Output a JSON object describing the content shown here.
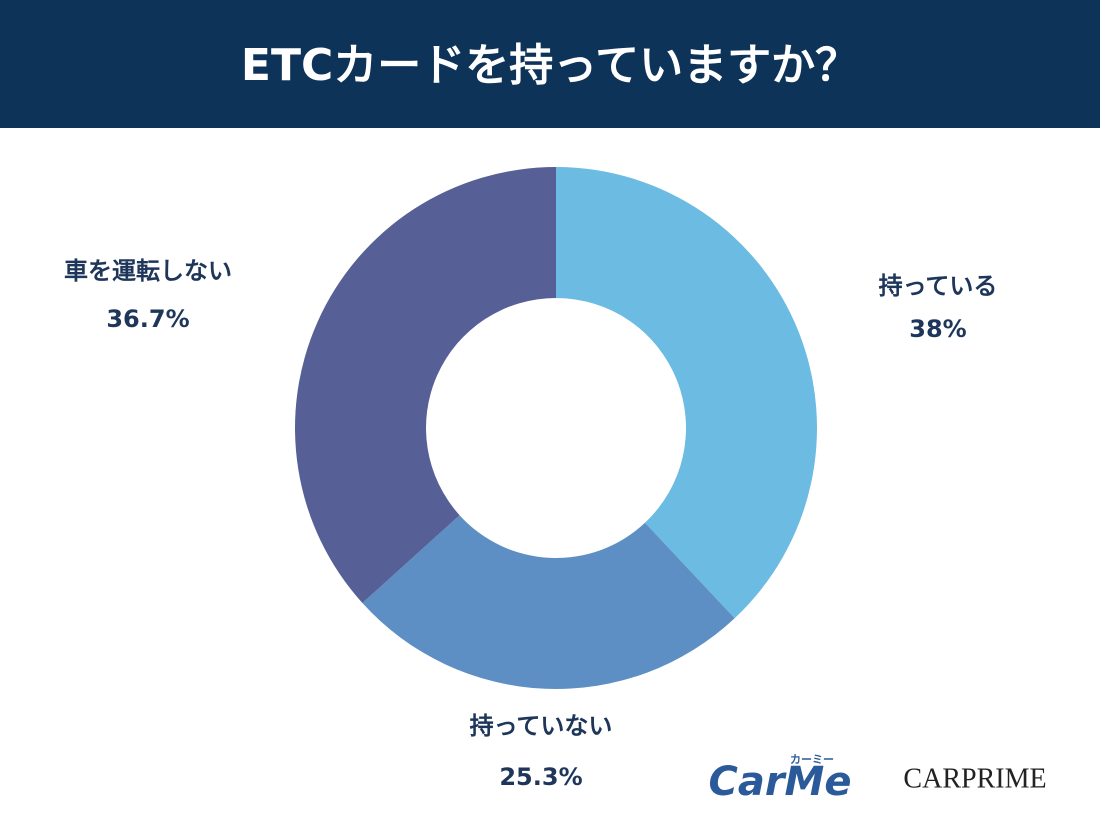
{
  "chart_data": {
    "type": "donut",
    "title": "ETCカードを持っていますか？",
    "categories": [
      "持っている",
      "持っていない",
      "車を運転しない"
    ],
    "values": [
      38,
      25.3,
      36.7
    ],
    "value_labels": [
      "38%",
      "25.3%",
      "36.7%"
    ],
    "colors": [
      "#6bbbe3",
      "#5e8fc4",
      "#566096"
    ]
  },
  "branding": {
    "carme": "CarMe",
    "carme_kana": "カーミー",
    "carprime": "CARPRIME"
  }
}
